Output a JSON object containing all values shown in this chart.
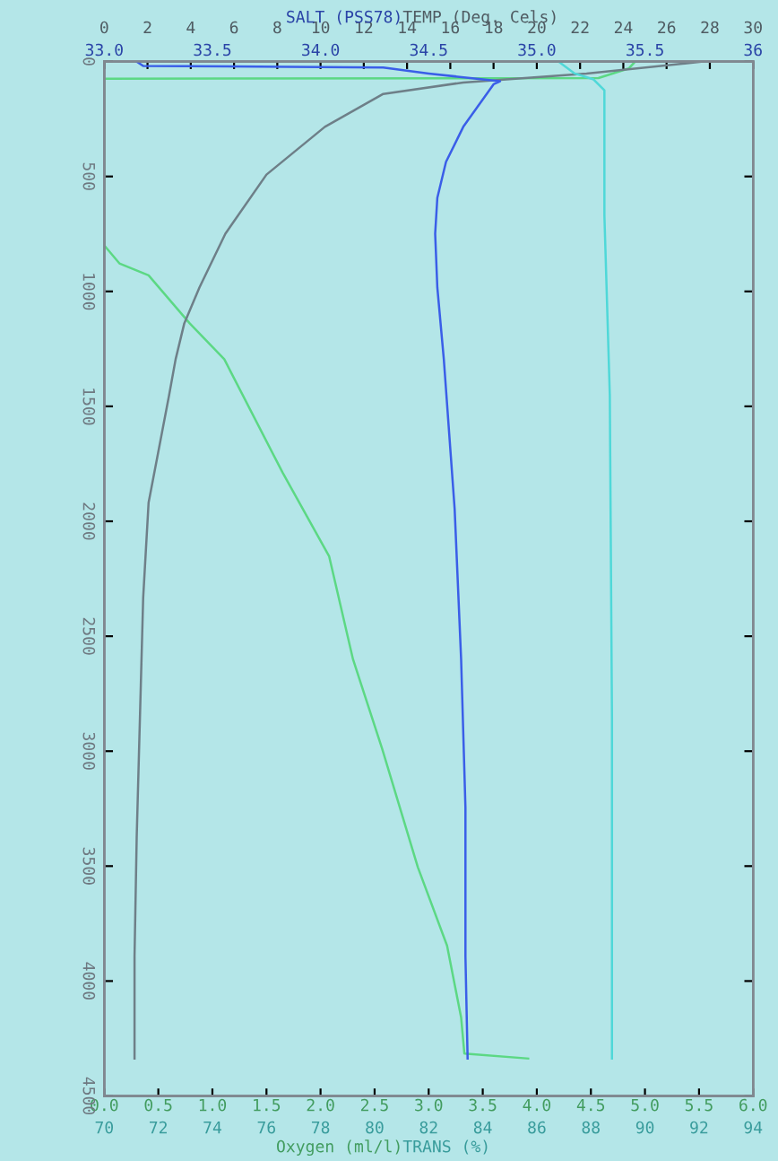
{
  "chart_data": [
    {
      "type": "line",
      "xlabel": "Oxygen (ml/l)",
      "x2label": "TEMP (Deg. Cels)",
      "ylim": [
        4500,
        0
      ],
      "yticks": [
        0,
        500,
        1000,
        1500,
        2000,
        2500,
        3000,
        3500,
        4000,
        4500
      ],
      "xlim": [
        0,
        6
      ],
      "xticks": [
        {
          "value": 0,
          "label": "0.0"
        },
        {
          "value": 0.5,
          "label": "0.5"
        },
        {
          "value": 1,
          "label": "1.0"
        },
        {
          "value": 1.5,
          "label": "1.5"
        },
        {
          "value": 2,
          "label": "2.0"
        },
        {
          "value": 2.5,
          "label": "2.5"
        },
        {
          "value": 3,
          "label": "3.0"
        },
        {
          "value": 3.5,
          "label": "3.5"
        },
        {
          "value": 4,
          "label": "4.0"
        },
        {
          "value": 4.5,
          "label": "4.5"
        },
        {
          "value": 5,
          "label": "5.0"
        },
        {
          "value": 5.5,
          "label": "5.5"
        },
        {
          "value": 6,
          "label": "6.0"
        }
      ],
      "x2lim": [
        0,
        30
      ],
      "x2ticks": [
        0,
        2,
        4,
        6,
        8,
        10,
        12,
        14,
        16,
        18,
        20,
        22,
        24,
        26,
        28,
        30
      ],
      "marker": "none",
      "line_style": "solid",
      "series": [
        {
          "axis": "x2",
          "color": "#6e7f88",
          "x": [
            27.7,
            22.3,
            16.6,
            12.9,
            10.2,
            7.5,
            5.6,
            4.4,
            3.7,
            3.3,
            3.0,
            2.05,
            1.8,
            1.65,
            1.5,
            1.4,
            1.4
          ],
          "values": [
            0,
            52,
            91,
            141,
            284,
            492,
            749,
            983,
            1139,
            1295,
            1451,
            1919,
            2332,
            2855,
            3375,
            3893,
            4337
          ]
        },
        {
          "color": "#5cd884",
          "x": [
            4.9,
            4.85,
            4.57,
            0.0,
            0.0,
            0.14,
            0.41,
            0.79,
            1.11,
            1.65,
            2.08,
            2.3,
            2.57,
            2.9,
            3.17,
            3.3,
            3.33,
            3.92
          ],
          "values": [
            5,
            30,
            72,
            75,
            800,
            878,
            930,
            1139,
            1295,
            1789,
            2153,
            2600,
            2990,
            3505,
            3846,
            4158,
            4315,
            4337
          ]
        }
      ]
    },
    {
      "type": "line",
      "xlabel": "TRANS (%)",
      "x2label": "SALT (PSS78)",
      "ylim": [
        4500,
        0
      ],
      "tick_labels": "x",
      "xlim": [
        70,
        94
      ],
      "xticks": [
        70,
        72,
        74,
        76,
        78,
        80,
        82,
        84,
        86,
        88,
        90,
        92,
        94
      ],
      "x2lim": [
        33,
        36
      ],
      "x2ticks": [
        {
          "value": 33,
          "label": "33.0"
        },
        {
          "value": 33.5,
          "label": "33.5"
        },
        {
          "value": 34,
          "label": "34.0"
        },
        {
          "value": 34.5,
          "label": "34.5"
        },
        {
          "value": 35,
          "label": "35.0"
        },
        {
          "value": 35.5,
          "label": "35.5"
        },
        {
          "value": 36,
          "label": "36"
        }
      ],
      "marker": "none",
      "line_style": "solid",
      "series": [
        {
          "axis": "x2",
          "color": "#3a5ee8",
          "x": [
            33.15,
            33.18,
            34.29,
            34.5,
            34.83,
            34.8,
            34.66,
            34.58,
            34.54,
            34.53,
            34.54,
            34.57,
            34.62,
            34.65,
            34.67,
            34.67,
            34.68
          ],
          "values": [
            0,
            19,
            26,
            52,
            86,
            99,
            284,
            437,
            593,
            749,
            983,
            1295,
            1945,
            2600,
            3246,
            3893,
            4337
          ]
        },
        {
          "color": "#4fd8d8",
          "x": [
            86.8,
            87.4,
            88.1,
            88.5,
            88.5,
            88.7,
            88.78,
            88.78
          ],
          "values": [
            0,
            52,
            78,
            125,
            670,
            1451,
            2855,
            4337
          ]
        }
      ]
    }
  ]
}
